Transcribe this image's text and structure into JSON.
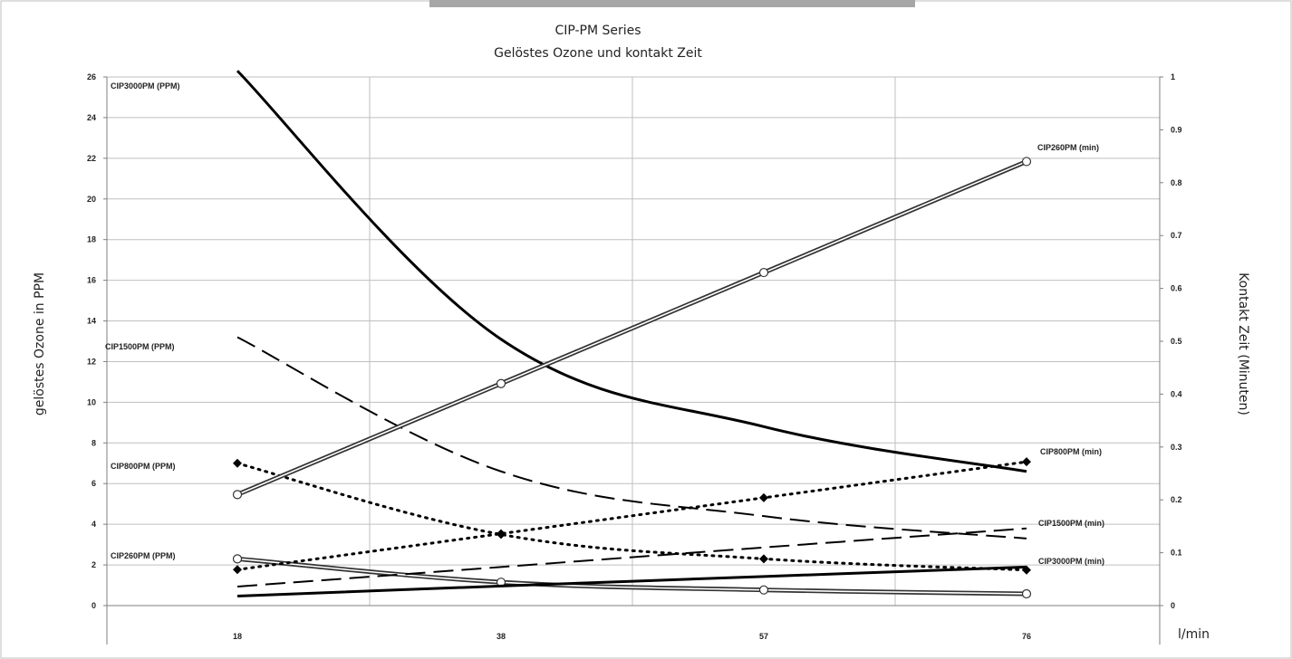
{
  "chart_data": {
    "type": "line",
    "title": "CIP-PM Series",
    "subtitle": "Gelöstes Ozone und kontakt Zeit",
    "ylabel_left": "gelöstes Ozone in PPM",
    "ylabel_right": "Kontakt Zeit (Minuten)",
    "xlabel": "l/min",
    "categories": [
      "18",
      "38",
      "57",
      "76"
    ],
    "ylim_left": [
      0,
      26
    ],
    "ylim_right": [
      0,
      1
    ],
    "yticks_left": [
      "0",
      "2",
      "4",
      "6",
      "8",
      "10",
      "12",
      "14",
      "16",
      "18",
      "20",
      "22",
      "24",
      "26"
    ],
    "yticks_right": [
      "0",
      "0.1",
      "0.2",
      "0.3",
      "0.4",
      "0.5",
      "0.6",
      "0.7",
      "0.8",
      "0.9",
      "1"
    ],
    "grid": true,
    "series": [
      {
        "name": "CIP3000PM (PPM)",
        "axis": "left",
        "style": "solid-thick",
        "marker": "none",
        "values": [
          26.3,
          13.1,
          8.8,
          6.6
        ]
      },
      {
        "name": "CIP1500PM (PPM)",
        "axis": "left",
        "style": "dashed",
        "marker": "none",
        "values": [
          13.2,
          6.6,
          4.4,
          3.3
        ]
      },
      {
        "name": "CIP800PM (PPM)",
        "axis": "left",
        "style": "dotted",
        "marker": "diamond",
        "values": [
          7.0,
          3.5,
          2.3,
          1.75
        ]
      },
      {
        "name": "CIP260PM (PPM)",
        "axis": "left",
        "style": "double",
        "marker": "circle",
        "values": [
          2.3,
          1.15,
          0.77,
          0.58
        ]
      },
      {
        "name": "CIP260PM (min)",
        "axis": "right",
        "style": "double",
        "marker": "circle",
        "values": [
          0.21,
          0.42,
          0.63,
          0.84
        ]
      },
      {
        "name": "CIP800PM (min)",
        "axis": "right",
        "style": "dotted",
        "marker": "diamond",
        "values": [
          0.068,
          0.136,
          0.204,
          0.272
        ]
      },
      {
        "name": "CIP1500PM (min)",
        "axis": "right",
        "style": "dashed",
        "marker": "none",
        "values": [
          0.036,
          0.073,
          0.11,
          0.146
        ]
      },
      {
        "name": "CIP3000PM (min)",
        "axis": "right",
        "style": "solid-thick",
        "marker": "none",
        "values": [
          0.018,
          0.037,
          0.055,
          0.073
        ]
      }
    ],
    "colors": {
      "line": "#000000",
      "grid": "#bfbfbf",
      "axis": "#7f7f7f",
      "frame": "#bfbfbf",
      "top_bar": "#a6a6a6"
    }
  }
}
